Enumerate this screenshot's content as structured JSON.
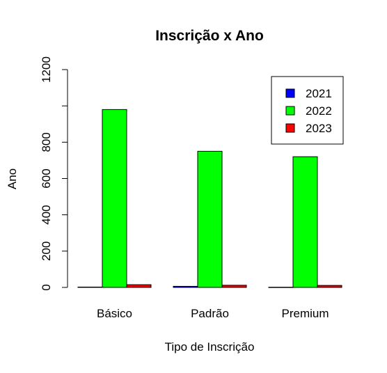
{
  "chart_data": {
    "type": "bar",
    "mode": "grouped",
    "title": "Inscrição x Ano",
    "xlabel": "Tipo de Inscrição",
    "ylabel": "Ano",
    "categories": [
      "Básico",
      "Padrão",
      "Premium"
    ],
    "series": [
      {
        "name": "2021",
        "color": "#0000ff",
        "values": [
          2,
          6,
          1
        ]
      },
      {
        "name": "2022",
        "color": "#00ff00",
        "values": [
          980,
          750,
          720
        ]
      },
      {
        "name": "2023",
        "color": "#ff0000",
        "values": [
          15,
          12,
          11
        ]
      }
    ],
    "ylim": [
      0,
      1200
    ],
    "yticks": [
      0,
      200,
      400,
      600,
      800,
      1000,
      1200
    ],
    "ytick_labels": [
      "0",
      "200",
      "400",
      "600",
      "800",
      "",
      "1200"
    ],
    "legend_position": "top-right",
    "grid": false
  }
}
